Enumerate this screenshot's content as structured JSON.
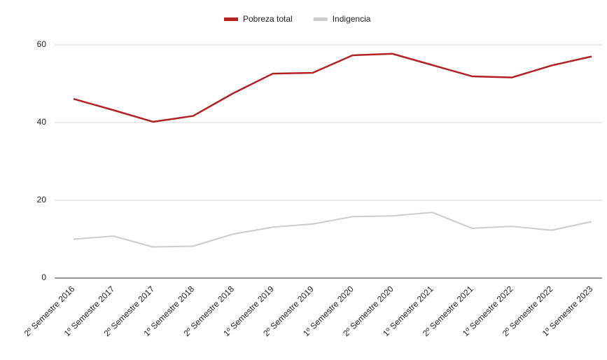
{
  "chart_data": {
    "type": "line",
    "categories": [
      "2º Semestre 2016",
      "1º Semestre 2017",
      "2º Semestre 2017",
      "1º Semestre 2018",
      "2º Semestre 2018",
      "1º Semestre 2019",
      "2º Semestre 2019",
      "1º Semestre 2020",
      "2º Semestre 2020",
      "1º Semestre 2021",
      "2º Semestre 2021",
      "1º Semestre 2022",
      "2º Semestre 2022",
      "1º Semestre 2023"
    ],
    "series": [
      {
        "name": "Pobreza total",
        "color": "#b22222",
        "values": [
          46.1,
          43.2,
          40.2,
          41.7,
          47.5,
          52.6,
          52.8,
          57.3,
          57.7,
          54.8,
          51.9,
          51.6,
          54.7,
          57.0
        ]
      },
      {
        "name": "Indigencia",
        "color": "#cccccc",
        "values": [
          10.0,
          10.8,
          8.0,
          8.2,
          11.3,
          13.1,
          13.9,
          15.8,
          16.0,
          16.9,
          12.8,
          13.3,
          12.3,
          14.5
        ]
      }
    ],
    "ylim": [
      0,
      60
    ],
    "yticks": [
      0,
      20,
      40,
      60
    ],
    "grid": true,
    "legend": "top"
  }
}
